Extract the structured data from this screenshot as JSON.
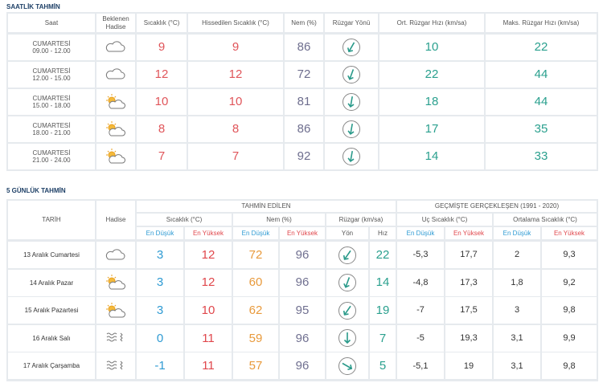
{
  "hourly": {
    "title": "SAATLİK TAHMİN",
    "headers": [
      "Saat",
      "Beklenen Hadise",
      "Sıcaklık (°C)",
      "Hissedilen Sıcaklık (°C)",
      "Nem (%)",
      "Rüzgar Yönü",
      "Ort. Rüzgar Hızı (km/sa)",
      "Maks. Rüzgar Hızı (km/sa)"
    ],
    "rows": [
      {
        "day": "CUMARTESİ",
        "time": "09.00 - 12.00",
        "temperature": 9,
        "feels_like": 9,
        "humidity": 86,
        "wind_avg": 10,
        "wind_max": 22
      },
      {
        "day": "CUMARTESİ",
        "time": "12.00 - 15.00",
        "temperature": 12,
        "feels_like": 12,
        "humidity": 72,
        "wind_avg": 22,
        "wind_max": 44
      },
      {
        "day": "CUMARTESİ",
        "time": "15.00 - 18.00",
        "temperature": 10,
        "feels_like": 10,
        "humidity": 81,
        "wind_avg": 18,
        "wind_max": 44
      },
      {
        "day": "CUMARTESİ",
        "time": "18.00 - 21.00",
        "temperature": 8,
        "feels_like": 8,
        "humidity": 86,
        "wind_avg": 17,
        "wind_max": 35
      },
      {
        "day": "CUMARTESİ",
        "time": "21.00 - 24.00",
        "temperature": 7,
        "feels_like": 7,
        "humidity": 92,
        "wind_avg": 14,
        "wind_max": 33
      }
    ]
  },
  "daily": {
    "title": "5 GÜNLÜK TAHMİN",
    "group_headers": {
      "forecast": "TAHMİN EDİLEN",
      "historical": "GEÇMİŞTE GERÇEKLEŞEN (1991 - 2020)"
    },
    "headers": {
      "date": "TARİH",
      "event": "Hadise",
      "temperature": "Sıcaklık (°C)",
      "humidity": "Nem (%)",
      "wind": "Rüzgar (km/sa)",
      "extreme_temperature": "Uç Sıcaklık (°C)",
      "average_temperature": "Ortalama Sıcaklık (°C)"
    },
    "subheaders": [
      "En Düşük",
      "En Yüksek",
      "En Düşük",
      "En Yüksek",
      "Yön",
      "Hız",
      "En Düşük",
      "En Yüksek",
      "En Düşük",
      "En Yüksek"
    ],
    "rows": [
      {
        "date": "13 Aralık Cumartesi",
        "values": [
          3,
          12,
          72,
          96,
          22,
          "-5,3",
          "17,7",
          2,
          "9,3"
        ]
      },
      {
        "date": "14 Aralık Pazar",
        "values": [
          3,
          12,
          60,
          96,
          14,
          "-4,8",
          "17,3",
          "1,8",
          "9,2"
        ]
      },
      {
        "date": "15 Aralık Pazartesi",
        "values": [
          3,
          10,
          62,
          95,
          19,
          -7,
          "17,5",
          3,
          "9,8"
        ]
      },
      {
        "date": "16 Aralık Salı",
        "values": [
          0,
          11,
          59,
          96,
          7,
          -5,
          "19,3",
          "3,1",
          "9,9"
        ]
      },
      {
        "date": "17 Aralık Çarşamba",
        "values": [
          -1,
          11,
          57,
          96,
          5,
          "-5,1",
          19,
          "3,1",
          "9,8"
        ]
      }
    ]
  }
}
